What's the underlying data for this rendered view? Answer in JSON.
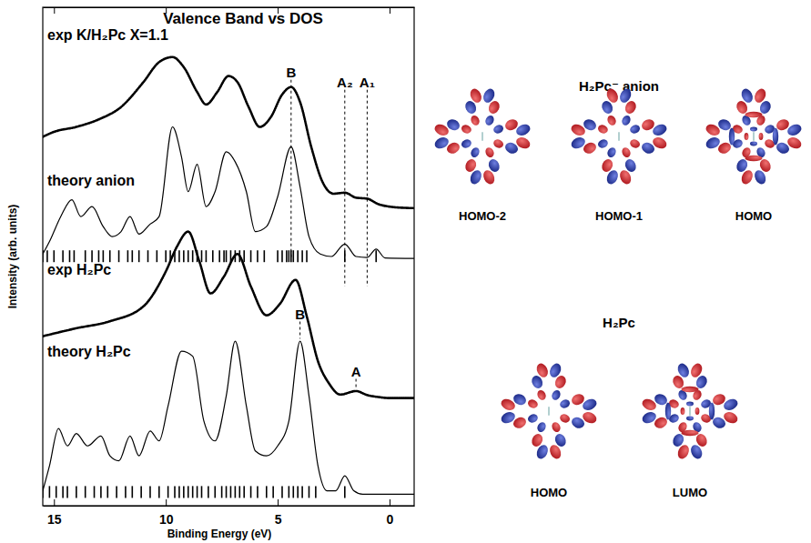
{
  "chart_data": {
    "type": "line",
    "title": "Valence Band vs DOS",
    "x_label": "Binding Energy (eV)",
    "y_label": "Intensity (arb. units)",
    "xlim": [
      15.5,
      -1.1
    ],
    "xticks": [
      15,
      10,
      5,
      0
    ],
    "ylim": [
      0,
      100
    ],
    "tick_labels": "x",
    "series": [
      {
        "name": "exp K/H₂Pc X=1.1",
        "color": "#000000",
        "marker": "dot",
        "x": [
          15.5,
          15,
          14,
          13,
          12,
          11,
          10.3,
          9.7,
          9.2,
          8.6,
          8.2,
          7.7,
          7.2,
          6.8,
          6.3,
          5.8,
          5.3,
          4.8,
          4.4,
          4.0,
          3.5,
          3.0,
          2.5,
          2.0,
          1.5,
          1.0,
          0.5,
          0,
          -0.5,
          -1.1
        ],
        "values": [
          74,
          75,
          76,
          77.5,
          80,
          85,
          89,
          90,
          88,
          83,
          80.5,
          83,
          86.2,
          85,
          80,
          76,
          78,
          82.5,
          84,
          81,
          72,
          65,
          62.6,
          62.8,
          61.8,
          61.6,
          60.5,
          60,
          59.8,
          59.7
        ]
      },
      {
        "name": "theory anion",
        "color": "#000000",
        "line_style": "solid",
        "x": [
          15.5,
          15.2,
          14.7,
          14.2,
          13.8,
          13.3,
          12.8,
          12.4,
          12.0,
          11.6,
          11.2,
          10.7,
          10.3,
          9.7,
          9.3,
          9.0,
          8.6,
          8.2,
          7.8,
          7.3,
          6.9,
          6.4,
          6.0,
          5.5,
          5.0,
          4.4,
          4.0,
          3.6,
          3.1,
          2.6,
          2.0,
          1.5,
          1.0,
          0.6,
          0.2,
          -1.1
        ],
        "values": [
          50.5,
          53,
          58,
          61.4,
          58,
          60,
          56,
          54,
          55,
          58,
          54.5,
          56.5,
          58,
          76,
          70,
          63,
          68.5,
          60,
          63,
          71,
          69,
          63,
          55,
          56,
          62,
          72,
          64,
          54,
          50.5,
          50,
          52.5,
          50,
          49.8,
          51.5,
          49.7,
          49.6
        ],
        "levels": [
          15.5,
          15.3,
          15.0,
          14.6,
          14.3,
          14.1,
          13.6,
          13.3,
          13.0,
          12.8,
          12.5,
          12.1,
          11.7,
          11.5,
          11.2,
          10.8,
          10.4,
          10.0,
          9.8,
          9.6,
          9.4,
          9.2,
          9.0,
          8.8,
          8.6,
          8.4,
          8.2,
          7.9,
          7.6,
          7.4,
          7.3,
          7.1,
          6.9,
          6.7,
          6.5,
          6.2,
          5.9,
          5.6,
          5.0,
          4.8,
          4.6,
          4.5,
          4.4,
          4.3,
          4.1,
          3.9,
          3.7,
          2.0,
          0.6
        ]
      },
      {
        "name": "exp H₂Pc",
        "color": "#000000",
        "marker": "dot",
        "x": [
          15.5,
          14,
          12.5,
          11,
          10,
          9.5,
          9.0,
          8.5,
          8.0,
          7.4,
          6.8,
          6.2,
          5.5,
          4.9,
          4.2,
          3.7,
          3.2,
          2.7,
          2.2,
          1.5,
          1.0,
          0.5,
          0,
          -1.1
        ],
        "values": [
          34,
          35.6,
          37,
          40,
          47,
          52,
          55,
          49,
          42.6,
          46,
          50.5,
          44,
          38.2,
          40.5,
          45.3,
          38,
          29,
          24.5,
          22.3,
          23,
          22.2,
          21.8,
          21.6,
          21.6
        ]
      },
      {
        "name": "theory H₂Pc",
        "color": "#000000",
        "line_style": "solid",
        "x": [
          15.5,
          15.2,
          14.8,
          14.4,
          14.0,
          13.5,
          12.9,
          12.5,
          12.1,
          11.6,
          11.2,
          10.7,
          10.3,
          9.9,
          9.3,
          8.8,
          8.3,
          7.8,
          7.3,
          6.9,
          6.4,
          6.0,
          5.5,
          5.0,
          4.5,
          4.0,
          3.6,
          3.2,
          2.8,
          2.4,
          2.0,
          1.6,
          1.2,
          -1.1
        ],
        "values": [
          3,
          8,
          15.5,
          12,
          14.5,
          12,
          14,
          10,
          9,
          14,
          10,
          15,
          13,
          20,
          31,
          30,
          17,
          13,
          22,
          33,
          20,
          11,
          10,
          12,
          17,
          33,
          22,
          8,
          3,
          3,
          6,
          3,
          2.3,
          2.3
        ],
        "levels": [
          15.5,
          15.2,
          14.9,
          14.6,
          14.4,
          14.0,
          13.6,
          13.2,
          12.9,
          12.6,
          12.2,
          11.8,
          11.5,
          11.1,
          10.7,
          10.3,
          9.9,
          9.6,
          9.4,
          9.2,
          9.0,
          8.8,
          8.6,
          8.4,
          8.1,
          7.8,
          7.5,
          7.3,
          7.1,
          6.9,
          6.7,
          6.5,
          6.2,
          5.9,
          5.5,
          5.2,
          4.8,
          4.5,
          4.3,
          4.1,
          3.9,
          3.6,
          3.3,
          2.0
        ]
      }
    ],
    "annotations": [
      {
        "text": "B",
        "x": 4.4,
        "y": 86,
        "line_to": 49.6
      },
      {
        "text": "A₂",
        "x": 2.0,
        "y": 84,
        "line_to": 44
      },
      {
        "text": "A₁",
        "x": 1.0,
        "y": 84,
        "line_to": 44
      },
      {
        "text": "B",
        "x": 4.0,
        "y": 37.5,
        "line_to": 33.5
      },
      {
        "text": "A",
        "x": 1.5,
        "y": 26,
        "line_to": 23.5
      }
    ]
  },
  "orbitals": [
    {
      "title": "H₂Pc⁻ anion",
      "labels": [
        "HOMO-2",
        "HOMO-1",
        "HOMO"
      ]
    },
    {
      "title": "H₂Pc",
      "labels": [
        "HOMO",
        "LUMO"
      ]
    }
  ]
}
